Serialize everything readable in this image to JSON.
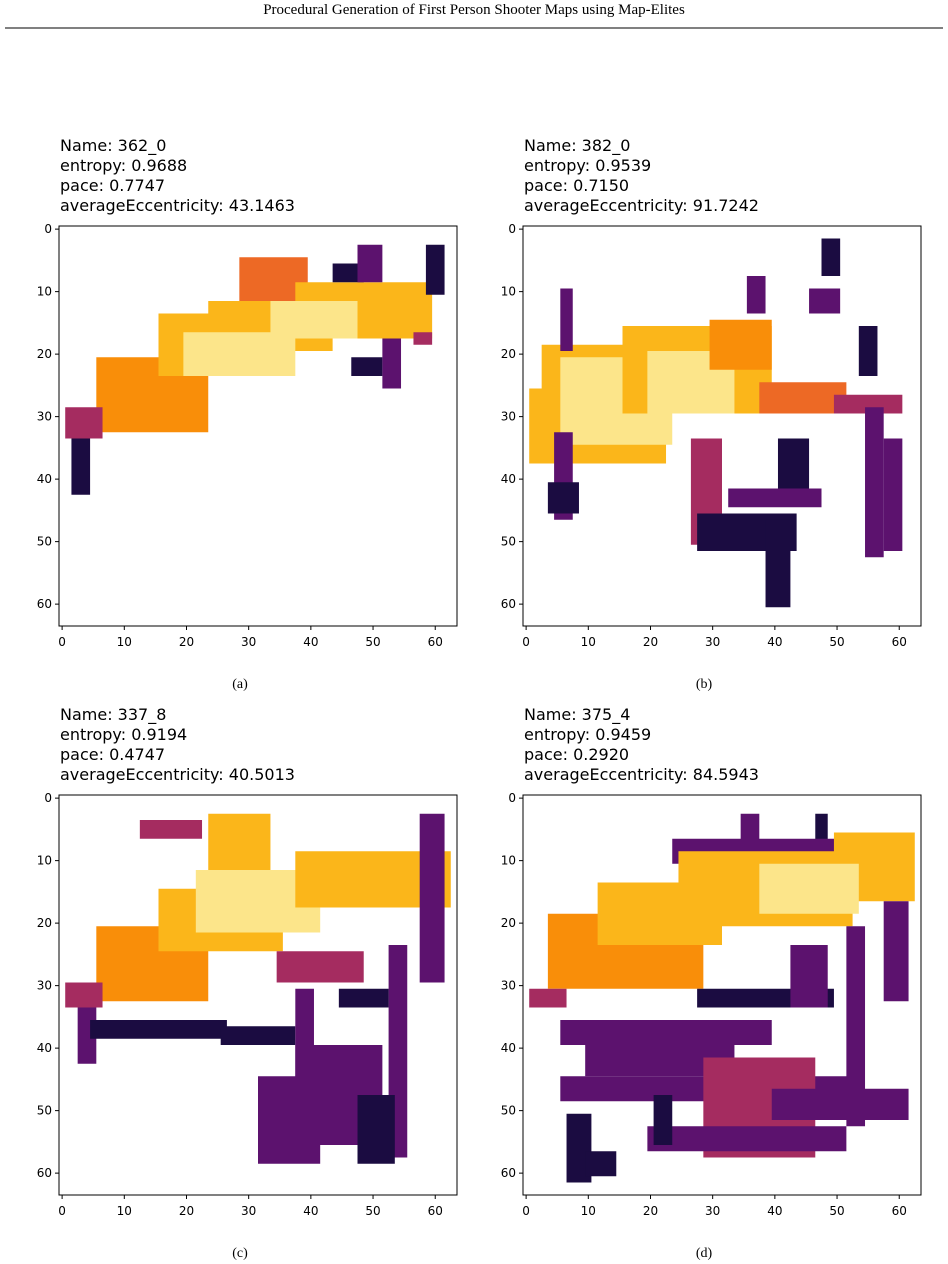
{
  "header": {
    "title": "Procedural Generation of First Person Shooter Maps using Map-Elites"
  },
  "panels": [
    {
      "title_lines": [
        "Name: 362_0",
        " entropy: 0.9688",
        "pace: 0.7747",
        "averageEccentricity: 43.1463"
      ],
      "caption": "(a)",
      "xlim": [
        -0.5,
        63.5
      ],
      "ylim": [
        63.5,
        -0.5
      ],
      "xticks": [
        0,
        10,
        20,
        30,
        40,
        50,
        60
      ],
      "yticks": [
        0,
        10,
        20,
        30,
        40,
        50,
        60
      ]
    },
    {
      "title_lines": [
        "Name: 382_0",
        " entropy: 0.9539",
        "pace: 0.7150",
        "averageEccentricity: 91.7242"
      ],
      "caption": "(b)",
      "xlim": [
        -0.5,
        63.5
      ],
      "ylim": [
        63.5,
        -0.5
      ],
      "xticks": [
        0,
        10,
        20,
        30,
        40,
        50,
        60
      ],
      "yticks": [
        0,
        10,
        20,
        30,
        40,
        50,
        60
      ]
    },
    {
      "title_lines": [
        "Name: 337_8",
        " entropy: 0.9194",
        "pace: 0.4747",
        "averageEccentricity: 40.5013"
      ],
      "caption": "(c)",
      "xlim": [
        -0.5,
        63.5
      ],
      "ylim": [
        63.5,
        -0.5
      ],
      "xticks": [
        0,
        10,
        20,
        30,
        40,
        50,
        60
      ],
      "yticks": [
        0,
        10,
        20,
        30,
        40,
        50,
        60
      ]
    },
    {
      "title_lines": [
        "Name: 375_4",
        " entropy: 0.9459",
        "pace: 0.2920",
        "averageEccentricity: 84.5943"
      ],
      "caption": "(d)",
      "xlim": [
        -0.5,
        63.5
      ],
      "ylim": [
        63.5,
        -0.5
      ],
      "xticks": [
        0,
        10,
        20,
        30,
        40,
        50,
        60
      ],
      "yticks": [
        0,
        10,
        20,
        30,
        40,
        50,
        60
      ]
    }
  ]
}
